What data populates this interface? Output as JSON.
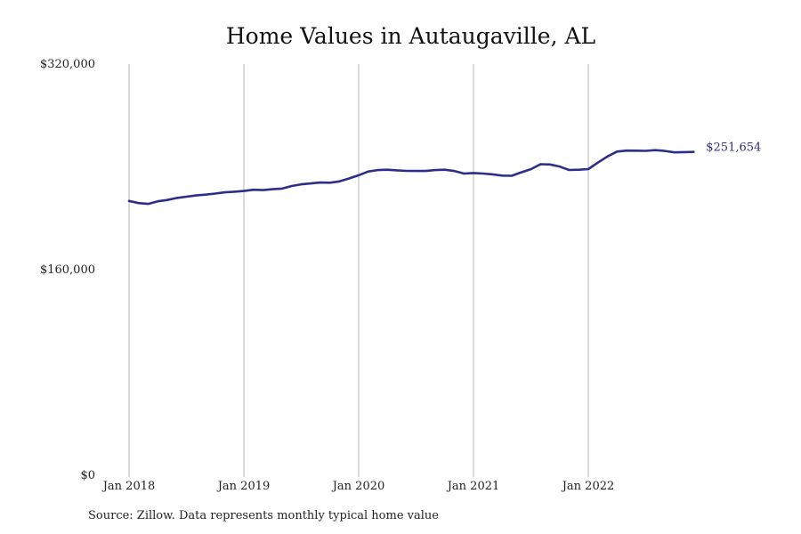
{
  "chart_data": {
    "type": "line",
    "title": "Home Values in Autaugaville, AL",
    "xlabel": "",
    "ylabel": "",
    "ylim": [
      0,
      320000
    ],
    "y_ticks": [
      {
        "value": 0,
        "label": "$0"
      },
      {
        "value": 160000,
        "label": "$160,000"
      },
      {
        "value": 320000,
        "label": "$320,000"
      }
    ],
    "x_ticks": [
      {
        "date": "2018-01",
        "label": "Jan 2018"
      },
      {
        "date": "2019-01",
        "label": "Jan 2019"
      },
      {
        "date": "2020-01",
        "label": "Jan 2020"
      },
      {
        "date": "2021-01",
        "label": "Jan 2021"
      },
      {
        "date": "2022-01",
        "label": "Jan 2022"
      }
    ],
    "grid": "vertical",
    "series": [
      {
        "color": "#2e2e8a",
        "end_label": "$251,654",
        "points": [
          [
            "2018-01",
            213500
          ],
          [
            "2018-02",
            211800
          ],
          [
            "2018-03",
            211200
          ],
          [
            "2018-04",
            213200
          ],
          [
            "2018-05",
            214200
          ],
          [
            "2018-06",
            215800
          ],
          [
            "2018-07",
            216800
          ],
          [
            "2018-08",
            217800
          ],
          [
            "2018-09",
            218400
          ],
          [
            "2018-10",
            219200
          ],
          [
            "2018-11",
            220200
          ],
          [
            "2018-12",
            220700
          ],
          [
            "2019-01",
            221200
          ],
          [
            "2019-02",
            222200
          ],
          [
            "2019-03",
            221900
          ],
          [
            "2019-04",
            222600
          ],
          [
            "2019-05",
            223100
          ],
          [
            "2019-06",
            225100
          ],
          [
            "2019-07",
            226400
          ],
          [
            "2019-08",
            227100
          ],
          [
            "2019-09",
            227800
          ],
          [
            "2019-10",
            227700
          ],
          [
            "2019-11",
            228700
          ],
          [
            "2019-12",
            231000
          ],
          [
            "2020-01",
            233500
          ],
          [
            "2020-02",
            236400
          ],
          [
            "2020-03",
            237500
          ],
          [
            "2020-04",
            237800
          ],
          [
            "2020-05",
            237300
          ],
          [
            "2020-06",
            236900
          ],
          [
            "2020-07",
            236800
          ],
          [
            "2020-08",
            236800
          ],
          [
            "2020-09",
            237500
          ],
          [
            "2020-10",
            237800
          ],
          [
            "2020-11",
            236800
          ],
          [
            "2020-12",
            234800
          ],
          [
            "2021-01",
            235200
          ],
          [
            "2021-02",
            234800
          ],
          [
            "2021-03",
            234200
          ],
          [
            "2021-04",
            233200
          ],
          [
            "2021-05",
            233100
          ],
          [
            "2021-06",
            235800
          ],
          [
            "2021-07",
            238200
          ],
          [
            "2021-08",
            242100
          ],
          [
            "2021-09",
            241900
          ],
          [
            "2021-10",
            240300
          ],
          [
            "2021-11",
            237600
          ],
          [
            "2021-12",
            237800
          ],
          [
            "2022-01",
            238300
          ],
          [
            "2022-02",
            243300
          ],
          [
            "2022-03",
            248100
          ],
          [
            "2022-04",
            251900
          ],
          [
            "2022-05",
            252700
          ],
          [
            "2022-06",
            252600
          ],
          [
            "2022-07",
            252500
          ],
          [
            "2022-08",
            253000
          ],
          [
            "2022-09",
            252400
          ],
          [
            "2022-10",
            251300
          ],
          [
            "2022-11",
            251500
          ],
          [
            "2022-12",
            251654
          ]
        ]
      }
    ]
  },
  "footer": {
    "source": "Source: Zillow. Data represents monthly typical home value"
  }
}
